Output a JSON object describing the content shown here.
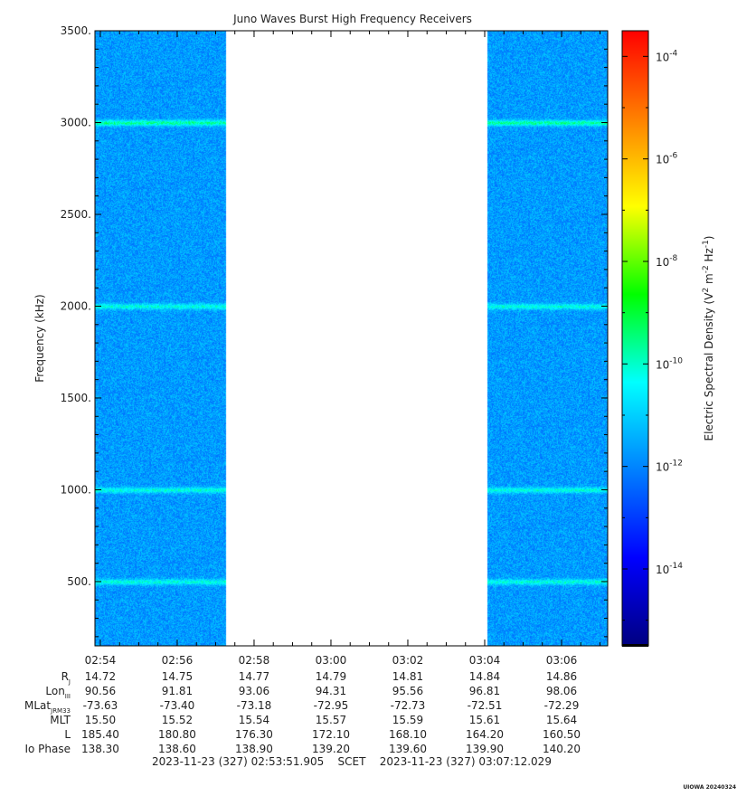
{
  "chart_data": {
    "type": "heatmap",
    "title": "Juno Waves Burst High Frequency Receivers",
    "ylabel": "Frequency (kHz)",
    "colorbar_label_parts": [
      "Electric Spectral Density (V",
      "2",
      " m",
      "-2",
      " Hz",
      "-1",
      ")"
    ],
    "ylim": [
      150,
      3500
    ],
    "y_ticks": [
      {
        "value": 500,
        "label": "500."
      },
      {
        "value": 1000,
        "label": "1000."
      },
      {
        "value": 1500,
        "label": "1500."
      },
      {
        "value": 2000,
        "label": "2000."
      },
      {
        "value": 2500,
        "label": "2500."
      },
      {
        "value": 3000,
        "label": "3000."
      },
      {
        "value": 3500,
        "label": "3500."
      }
    ],
    "x_minutes_range": [
      173.86,
      187.2
    ],
    "x_ticks": [
      {
        "minute": 174,
        "label": "02:54"
      },
      {
        "minute": 176,
        "label": "02:56"
      },
      {
        "minute": 178,
        "label": "02:58"
      },
      {
        "minute": 180,
        "label": "03:00"
      },
      {
        "minute": 182,
        "label": "03:02"
      },
      {
        "minute": 184,
        "label": "03:04"
      },
      {
        "minute": 186,
        "label": "03:06"
      }
    ],
    "data_segments": [
      [
        173.86,
        177.25
      ],
      [
        184.05,
        187.2
      ]
    ],
    "background_log10_density": -11.7,
    "emission_lines_khz": [
      500,
      1000,
      2000,
      3000
    ],
    "colorbar_log_range": [
      -15.5,
      -3.5
    ],
    "colorbar_ticks": [
      {
        "exp": -14,
        "base": "10",
        "sup": "-14"
      },
      {
        "exp": -12,
        "base": "10",
        "sup": "-12"
      },
      {
        "exp": -10,
        "base": "10",
        "sup": "-10"
      },
      {
        "exp": -8,
        "base": "10",
        "sup": "-8"
      },
      {
        "exp": -6,
        "base": "10",
        "sup": "-6"
      },
      {
        "exp": -4,
        "base": "10",
        "sup": "-4"
      }
    ],
    "colormap": [
      "#000080",
      "#0000ff",
      "#0080ff",
      "#00ffff",
      "#00ff00",
      "#ffff00",
      "#ff8000",
      "#ff0000"
    ]
  },
  "ephemeris": {
    "rows": [
      {
        "label_parts": [
          "R",
          "J",
          ""
        ],
        "values": [
          "14.72",
          "14.75",
          "14.77",
          "14.79",
          "14.81",
          "14.84",
          "14.86"
        ]
      },
      {
        "label_parts": [
          "Lon",
          "III",
          ""
        ],
        "values": [
          "90.56",
          "91.81",
          "93.06",
          "94.31",
          "95.56",
          "96.81",
          "98.06"
        ]
      },
      {
        "label_parts": [
          "MLat",
          "JRM33",
          ""
        ],
        "values": [
          "-73.63",
          "-73.40",
          "-73.18",
          "-72.95",
          "-72.73",
          "-72.51",
          "-72.29"
        ]
      },
      {
        "label_parts": [
          "MLT",
          "",
          ""
        ],
        "values": [
          "15.50",
          "15.52",
          "15.54",
          "15.57",
          "15.59",
          "15.61",
          "15.64"
        ]
      },
      {
        "label_parts": [
          "L",
          "",
          ""
        ],
        "values": [
          "185.40",
          "180.80",
          "176.30",
          "172.10",
          "168.10",
          "164.20",
          "160.50"
        ]
      },
      {
        "label_parts": [
          "Io Phase",
          "",
          ""
        ],
        "values": [
          "138.30",
          "138.60",
          "138.90",
          "139.20",
          "139.60",
          "139.90",
          "140.20"
        ]
      }
    ],
    "footer": "2023-11-23 (327) 02:53:51.905    SCET    2023-11-23 (327) 03:07:12.029"
  },
  "watermark": "UIOWA 20240324"
}
